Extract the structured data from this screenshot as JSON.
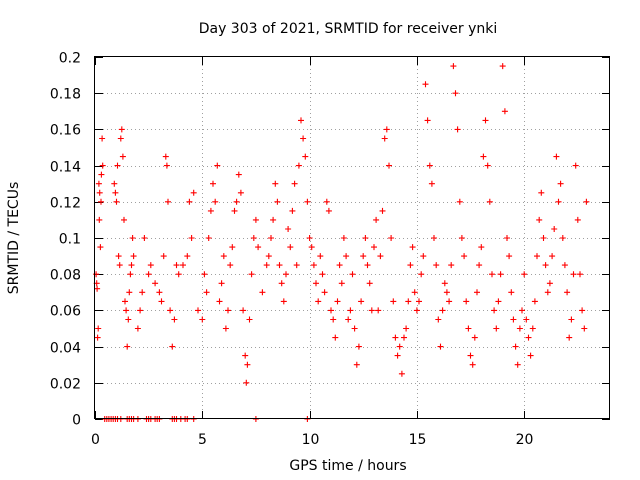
{
  "chart_data": {
    "type": "scatter",
    "title": "Day 303 of 2021, SRMTID for receiver ynki",
    "xlabel": "GPS time / hours",
    "ylabel": "SRMTID / TECUs",
    "xlim": [
      0,
      24
    ],
    "ylim": [
      0,
      0.2
    ],
    "x_ticks": [
      0,
      5,
      10,
      15,
      20
    ],
    "x_tick_labels": [
      "0",
      "5",
      "10",
      "15",
      "20"
    ],
    "y_ticks": [
      0,
      0.02,
      0.04,
      0.06,
      0.08,
      0.1,
      0.12,
      0.14,
      0.16,
      0.18,
      0.2
    ],
    "y_tick_labels": [
      "0",
      "0.02",
      "0.04",
      "0.06",
      "0.08",
      "0.1",
      "0.12",
      "0.14",
      "0.16",
      "0.18",
      "0.2"
    ],
    "grid": true,
    "marker": "+",
    "color": "#ff0000",
    "series": [
      {
        "name": "SRMTID",
        "points": [
          [
            0.05,
            0.08
          ],
          [
            0.08,
            0.075
          ],
          [
            0.1,
            0.072
          ],
          [
            0.12,
            0.045
          ],
          [
            0.15,
            0.05
          ],
          [
            0.18,
            0.13
          ],
          [
            0.2,
            0.11
          ],
          [
            0.22,
            0.125
          ],
          [
            0.25,
            0.095
          ],
          [
            0.28,
            0.12
          ],
          [
            0.3,
            0.135
          ],
          [
            0.33,
            0.155
          ],
          [
            0.36,
            0.14
          ],
          [
            0.9,
            0.13
          ],
          [
            0.95,
            0.125
          ],
          [
            1.0,
            0.12
          ],
          [
            1.05,
            0.14
          ],
          [
            1.1,
            0.09
          ],
          [
            1.15,
            0.085
          ],
          [
            1.2,
            0.155
          ],
          [
            1.25,
            0.16
          ],
          [
            1.3,
            0.145
          ],
          [
            1.35,
            0.11
          ],
          [
            1.4,
            0.065
          ],
          [
            1.45,
            0.06
          ],
          [
            1.5,
            0.04
          ],
          [
            1.55,
            0.055
          ],
          [
            1.6,
            0.07
          ],
          [
            1.65,
            0.08
          ],
          [
            1.7,
            0.085
          ],
          [
            1.75,
            0.1
          ],
          [
            1.8,
            0.09
          ],
          [
            2.0,
            0.05
          ],
          [
            2.1,
            0.06
          ],
          [
            2.2,
            0.07
          ],
          [
            2.3,
            0.1
          ],
          [
            2.5,
            0.08
          ],
          [
            2.6,
            0.085
          ],
          [
            2.8,
            0.075
          ],
          [
            3.0,
            0.07
          ],
          [
            3.1,
            0.065
          ],
          [
            3.2,
            0.09
          ],
          [
            3.3,
            0.145
          ],
          [
            3.35,
            0.14
          ],
          [
            3.4,
            0.12
          ],
          [
            3.5,
            0.06
          ],
          [
            3.6,
            0.04
          ],
          [
            3.7,
            0.055
          ],
          [
            3.8,
            0.085
          ],
          [
            3.9,
            0.08
          ],
          [
            4.1,
            0.085
          ],
          [
            4.3,
            0.09
          ],
          [
            4.4,
            0.12
          ],
          [
            4.5,
            0.1
          ],
          [
            4.6,
            0.125
          ],
          [
            4.8,
            0.06
          ],
          [
            5.0,
            0.055
          ],
          [
            5.1,
            0.08
          ],
          [
            5.2,
            0.07
          ],
          [
            5.3,
            0.1
          ],
          [
            5.4,
            0.115
          ],
          [
            5.5,
            0.13
          ],
          [
            5.6,
            0.12
          ],
          [
            5.7,
            0.14
          ],
          [
            5.8,
            0.065
          ],
          [
            5.9,
            0.075
          ],
          [
            6.0,
            0.09
          ],
          [
            6.1,
            0.05
          ],
          [
            6.2,
            0.06
          ],
          [
            6.3,
            0.085
          ],
          [
            6.4,
            0.095
          ],
          [
            6.5,
            0.115
          ],
          [
            6.6,
            0.12
          ],
          [
            6.7,
            0.135
          ],
          [
            6.8,
            0.125
          ],
          [
            6.9,
            0.06
          ],
          [
            7.0,
            0.035
          ],
          [
            7.05,
            0.02
          ],
          [
            7.1,
            0.03
          ],
          [
            7.2,
            0.055
          ],
          [
            7.3,
            0.08
          ],
          [
            7.4,
            0.1
          ],
          [
            7.5,
            0.11
          ],
          [
            7.6,
            0.095
          ],
          [
            7.8,
            0.07
          ],
          [
            8.0,
            0.085
          ],
          [
            8.1,
            0.09
          ],
          [
            8.2,
            0.1
          ],
          [
            8.3,
            0.11
          ],
          [
            8.4,
            0.13
          ],
          [
            8.5,
            0.12
          ],
          [
            8.6,
            0.085
          ],
          [
            8.7,
            0.075
          ],
          [
            8.8,
            0.065
          ],
          [
            8.9,
            0.08
          ],
          [
            9.0,
            0.105
          ],
          [
            9.1,
            0.095
          ],
          [
            9.2,
            0.115
          ],
          [
            9.3,
            0.13
          ],
          [
            9.4,
            0.085
          ],
          [
            9.5,
            0.14
          ],
          [
            9.6,
            0.165
          ],
          [
            9.7,
            0.155
          ],
          [
            9.8,
            0.145
          ],
          [
            9.9,
            0.12
          ],
          [
            10.0,
            0.1
          ],
          [
            10.1,
            0.095
          ],
          [
            10.2,
            0.085
          ],
          [
            10.3,
            0.075
          ],
          [
            10.4,
            0.065
          ],
          [
            10.5,
            0.09
          ],
          [
            10.6,
            0.08
          ],
          [
            10.7,
            0.07
          ],
          [
            10.8,
            0.12
          ],
          [
            10.9,
            0.115
          ],
          [
            11.0,
            0.06
          ],
          [
            11.1,
            0.055
          ],
          [
            11.2,
            0.045
          ],
          [
            11.3,
            0.065
          ],
          [
            11.4,
            0.085
          ],
          [
            11.5,
            0.075
          ],
          [
            11.6,
            0.1
          ],
          [
            11.7,
            0.09
          ],
          [
            11.8,
            0.055
          ],
          [
            11.9,
            0.06
          ],
          [
            12.0,
            0.08
          ],
          [
            12.1,
            0.05
          ],
          [
            12.2,
            0.03
          ],
          [
            12.3,
            0.04
          ],
          [
            12.4,
            0.065
          ],
          [
            12.5,
            0.09
          ],
          [
            12.6,
            0.1
          ],
          [
            12.7,
            0.085
          ],
          [
            12.8,
            0.075
          ],
          [
            12.9,
            0.06
          ],
          [
            13.0,
            0.095
          ],
          [
            13.1,
            0.11
          ],
          [
            13.2,
            0.06
          ],
          [
            13.3,
            0.09
          ],
          [
            13.4,
            0.115
          ],
          [
            13.5,
            0.155
          ],
          [
            13.6,
            0.16
          ],
          [
            13.7,
            0.14
          ],
          [
            13.8,
            0.1
          ],
          [
            13.9,
            0.065
          ],
          [
            14.0,
            0.045
          ],
          [
            14.1,
            0.035
          ],
          [
            14.2,
            0.04
          ],
          [
            14.3,
            0.025
          ],
          [
            14.4,
            0.045
          ],
          [
            14.5,
            0.05
          ],
          [
            14.6,
            0.065
          ],
          [
            14.7,
            0.085
          ],
          [
            14.8,
            0.095
          ],
          [
            14.9,
            0.07
          ],
          [
            15.0,
            0.06
          ],
          [
            15.1,
            0.065
          ],
          [
            15.2,
            0.08
          ],
          [
            15.3,
            0.09
          ],
          [
            15.4,
            0.185
          ],
          [
            15.5,
            0.165
          ],
          [
            15.6,
            0.14
          ],
          [
            15.7,
            0.13
          ],
          [
            15.8,
            0.1
          ],
          [
            15.9,
            0.085
          ],
          [
            16.0,
            0.055
          ],
          [
            16.1,
            0.04
          ],
          [
            16.2,
            0.06
          ],
          [
            16.3,
            0.075
          ],
          [
            16.4,
            0.07
          ],
          [
            16.5,
            0.065
          ],
          [
            16.6,
            0.085
          ],
          [
            16.7,
            0.195
          ],
          [
            16.8,
            0.18
          ],
          [
            16.9,
            0.16
          ],
          [
            17.0,
            0.12
          ],
          [
            17.1,
            0.1
          ],
          [
            17.2,
            0.09
          ],
          [
            17.3,
            0.065
          ],
          [
            17.4,
            0.05
          ],
          [
            17.5,
            0.035
          ],
          [
            17.6,
            0.03
          ],
          [
            17.7,
            0.045
          ],
          [
            17.8,
            0.07
          ],
          [
            17.9,
            0.085
          ],
          [
            18.0,
            0.095
          ],
          [
            18.1,
            0.145
          ],
          [
            18.2,
            0.165
          ],
          [
            18.3,
            0.14
          ],
          [
            18.4,
            0.12
          ],
          [
            18.5,
            0.08
          ],
          [
            18.6,
            0.06
          ],
          [
            18.7,
            0.05
          ],
          [
            18.8,
            0.065
          ],
          [
            18.9,
            0.08
          ],
          [
            19.0,
            0.195
          ],
          [
            19.1,
            0.17
          ],
          [
            19.2,
            0.1
          ],
          [
            19.3,
            0.09
          ],
          [
            19.4,
            0.07
          ],
          [
            19.5,
            0.055
          ],
          [
            19.6,
            0.04
          ],
          [
            19.7,
            0.03
          ],
          [
            19.8,
            0.05
          ],
          [
            19.9,
            0.06
          ],
          [
            20.0,
            0.08
          ],
          [
            20.1,
            0.055
          ],
          [
            20.2,
            0.045
          ],
          [
            20.3,
            0.035
          ],
          [
            20.4,
            0.05
          ],
          [
            20.5,
            0.065
          ],
          [
            20.6,
            0.09
          ],
          [
            20.7,
            0.11
          ],
          [
            20.8,
            0.125
          ],
          [
            20.9,
            0.1
          ],
          [
            21.0,
            0.085
          ],
          [
            21.1,
            0.07
          ],
          [
            21.2,
            0.075
          ],
          [
            21.3,
            0.09
          ],
          [
            21.4,
            0.105
          ],
          [
            21.5,
            0.145
          ],
          [
            21.6,
            0.12
          ],
          [
            21.7,
            0.13
          ],
          [
            21.8,
            0.1
          ],
          [
            21.9,
            0.085
          ],
          [
            22.0,
            0.07
          ],
          [
            22.1,
            0.045
          ],
          [
            22.2,
            0.055
          ],
          [
            22.3,
            0.08
          ],
          [
            22.4,
            0.14
          ],
          [
            22.5,
            0.11
          ],
          [
            22.6,
            0.08
          ],
          [
            22.7,
            0.06
          ],
          [
            22.8,
            0.05
          ],
          [
            22.9,
            0.12
          ],
          [
            0.45,
            0.0
          ],
          [
            0.55,
            0.0
          ],
          [
            0.65,
            0.0
          ],
          [
            0.75,
            0.0
          ],
          [
            0.85,
            0.0
          ],
          [
            0.95,
            0.0
          ],
          [
            1.05,
            0.0
          ],
          [
            1.2,
            0.0
          ],
          [
            1.5,
            0.0
          ],
          [
            1.6,
            0.0
          ],
          [
            1.7,
            0.0
          ],
          [
            1.8,
            0.0
          ],
          [
            2.0,
            0.0
          ],
          [
            2.4,
            0.0
          ],
          [
            2.5,
            0.0
          ],
          [
            2.6,
            0.0
          ],
          [
            2.8,
            0.0
          ],
          [
            2.9,
            0.0
          ],
          [
            3.0,
            0.0
          ],
          [
            3.6,
            0.0
          ],
          [
            3.7,
            0.0
          ],
          [
            3.8,
            0.0
          ],
          [
            4.0,
            0.0
          ],
          [
            4.2,
            0.0
          ],
          [
            4.3,
            0.0
          ],
          [
            4.6,
            0.0
          ],
          [
            7.5,
            0.0
          ],
          [
            9.9,
            0.0
          ]
        ]
      }
    ]
  }
}
